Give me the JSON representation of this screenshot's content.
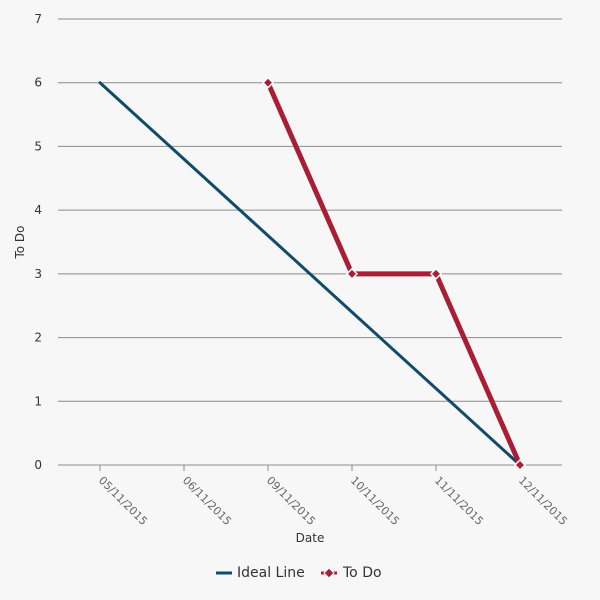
{
  "chart_data": {
    "type": "line",
    "title": "",
    "xlabel": "Date",
    "ylabel": "To Do",
    "ylim": [
      0,
      7
    ],
    "yticks": [
      "0",
      "1",
      "2",
      "3",
      "4",
      "5",
      "6",
      "7"
    ],
    "categories": [
      "05/11/2015",
      "06/11/2015",
      "09/11/2015",
      "10/11/2015",
      "11/11/2015",
      "12/11/2015"
    ],
    "grid": true,
    "legend_position": "bottom-center",
    "series": [
      {
        "name": "Ideal Line",
        "color": "#124b6a",
        "marker": "none",
        "values": [
          6,
          4.8,
          3.6,
          2.4,
          1.2,
          0
        ]
      },
      {
        "name": "To Do",
        "color": "#a81f35",
        "marker": "diamond",
        "values": [
          null,
          null,
          6,
          3,
          3,
          0
        ]
      }
    ]
  }
}
